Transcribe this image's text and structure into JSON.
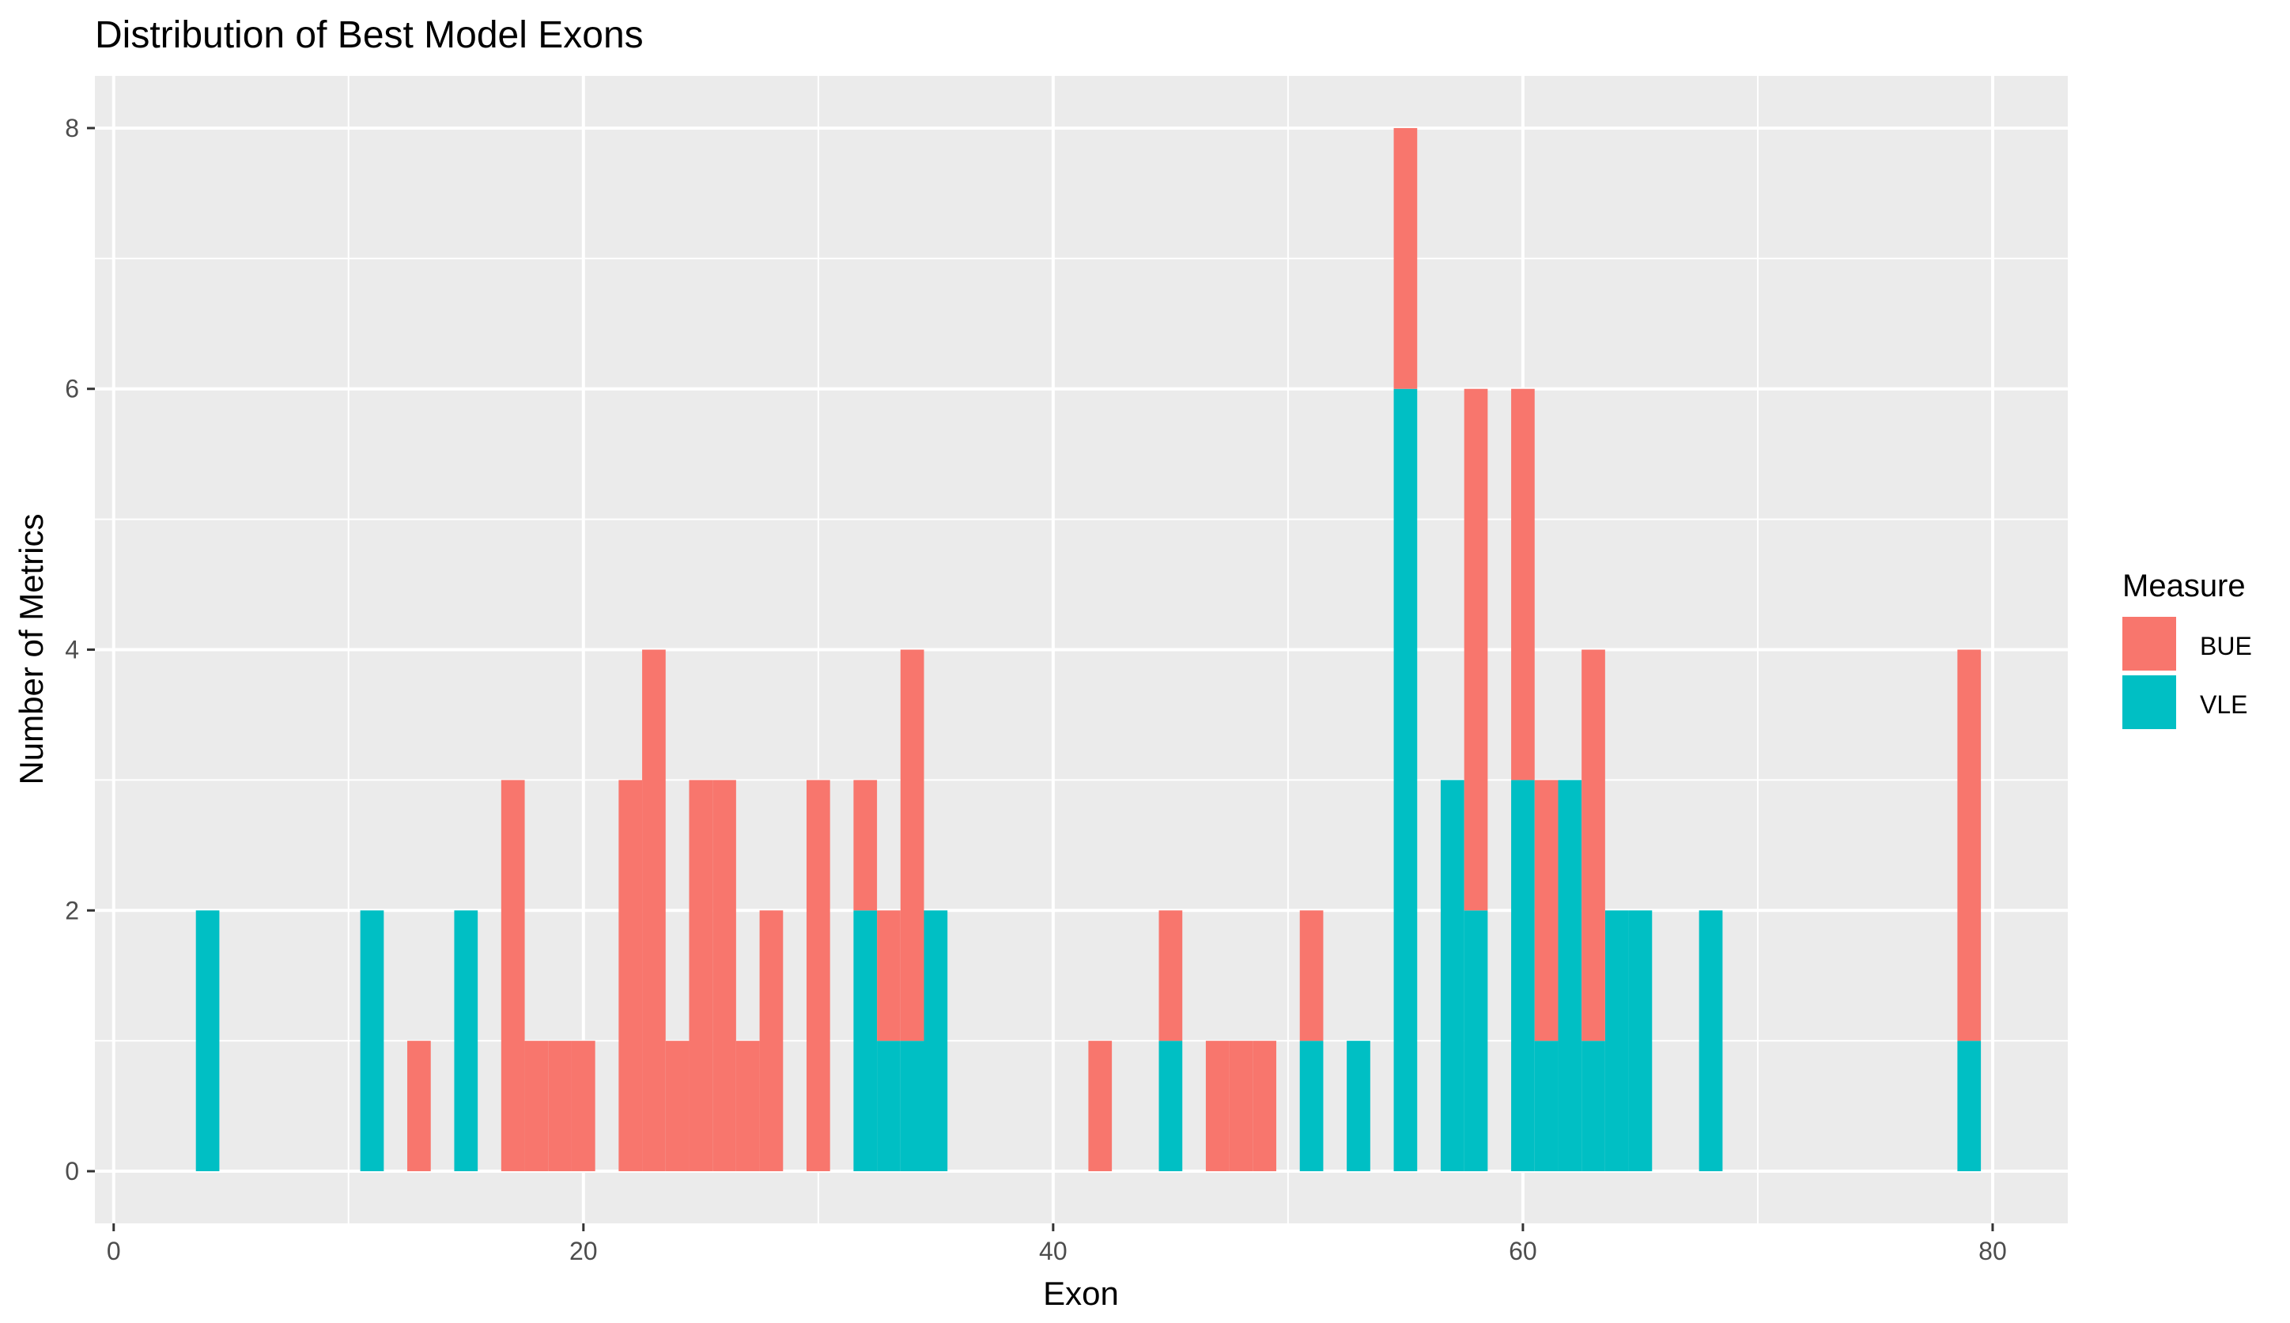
{
  "chart_data": {
    "type": "bar",
    "stacked": true,
    "title": "Distribution of Best Model Exons",
    "xlabel": "Exon",
    "ylabel": "Number of Metrics",
    "xlim": [
      -0.8,
      83.2
    ],
    "ylim": [
      -0.4,
      8.4
    ],
    "bin_width": 1,
    "x_ticks": [
      0,
      20,
      40,
      60,
      80
    ],
    "y_ticks": [
      0,
      2,
      4,
      6,
      8
    ],
    "grid": true,
    "legend": {
      "title": "Measure",
      "position": "right"
    },
    "colors": {
      "BUE": "#F8766D",
      "VLE": "#00BFC4",
      "panel": "#EBEBEB",
      "grid": "#FFFFFF"
    },
    "series": [
      {
        "name": "VLE",
        "color": "#00BFC4",
        "points": [
          {
            "x": 4,
            "y": 2
          },
          {
            "x": 11,
            "y": 2
          },
          {
            "x": 15,
            "y": 2
          },
          {
            "x": 32,
            "y": 2
          },
          {
            "x": 33,
            "y": 1
          },
          {
            "x": 34,
            "y": 1
          },
          {
            "x": 35,
            "y": 2
          },
          {
            "x": 45,
            "y": 1
          },
          {
            "x": 51,
            "y": 1
          },
          {
            "x": 53,
            "y": 1
          },
          {
            "x": 55,
            "y": 6
          },
          {
            "x": 57,
            "y": 3
          },
          {
            "x": 58,
            "y": 2
          },
          {
            "x": 60,
            "y": 3
          },
          {
            "x": 61,
            "y": 1
          },
          {
            "x": 62,
            "y": 3
          },
          {
            "x": 63,
            "y": 1
          },
          {
            "x": 64,
            "y": 2
          },
          {
            "x": 65,
            "y": 2
          },
          {
            "x": 68,
            "y": 2
          },
          {
            "x": 79,
            "y": 1
          }
        ]
      },
      {
        "name": "BUE",
        "color": "#F8766D",
        "points": [
          {
            "x": 13,
            "y": 1
          },
          {
            "x": 17,
            "y": 3
          },
          {
            "x": 18,
            "y": 1
          },
          {
            "x": 19,
            "y": 1
          },
          {
            "x": 20,
            "y": 1
          },
          {
            "x": 22,
            "y": 3
          },
          {
            "x": 23,
            "y": 4
          },
          {
            "x": 24,
            "y": 1
          },
          {
            "x": 25,
            "y": 3
          },
          {
            "x": 26,
            "y": 3
          },
          {
            "x": 27,
            "y": 1
          },
          {
            "x": 28,
            "y": 2
          },
          {
            "x": 30,
            "y": 3
          },
          {
            "x": 32,
            "y": 1
          },
          {
            "x": 33,
            "y": 1
          },
          {
            "x": 34,
            "y": 3
          },
          {
            "x": 42,
            "y": 1
          },
          {
            "x": 45,
            "y": 1
          },
          {
            "x": 47,
            "y": 1
          },
          {
            "x": 48,
            "y": 1
          },
          {
            "x": 49,
            "y": 1
          },
          {
            "x": 51,
            "y": 1
          },
          {
            "x": 55,
            "y": 2
          },
          {
            "x": 58,
            "y": 4
          },
          {
            "x": 60,
            "y": 3
          },
          {
            "x": 61,
            "y": 2
          },
          {
            "x": 63,
            "y": 3
          },
          {
            "x": 79,
            "y": 3
          }
        ]
      }
    ]
  }
}
